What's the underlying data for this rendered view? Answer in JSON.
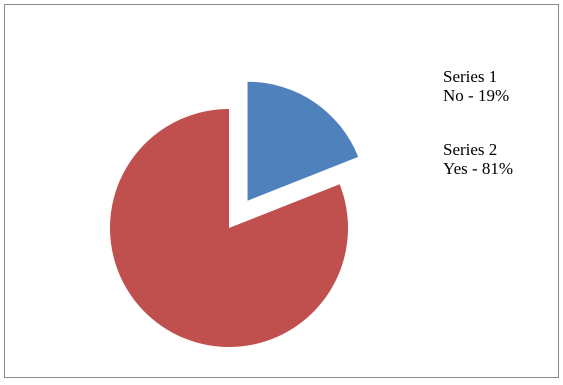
{
  "chart_data": {
    "type": "pie",
    "slices": [
      {
        "series": "Series 1",
        "category": "No",
        "value": 19,
        "label": "No - 19%",
        "color": "#4f81bd",
        "exploded": true
      },
      {
        "series": "Series 2",
        "category": "Yes",
        "value": 81,
        "label": "Yes - 81%",
        "color": "#c0504d",
        "exploded": false
      }
    ],
    "start_angle_deg": 0,
    "direction": "clockwise",
    "label_position": "right"
  }
}
